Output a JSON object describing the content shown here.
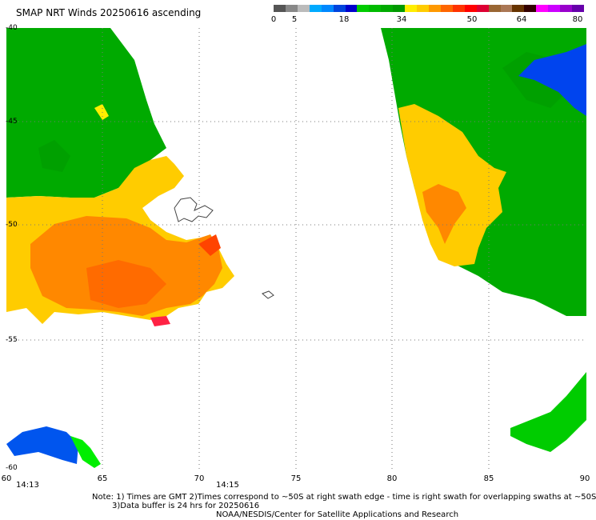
{
  "title": "SMAP NRT Winds 20250616 ascending",
  "colorbar": {
    "labels": [
      "0",
      "5",
      "18",
      "34",
      "50",
      "64",
      "80"
    ],
    "segments": [
      "#555555",
      "#888888",
      "#bbbbbb",
      "#00aaff",
      "#0088ff",
      "#0044dd",
      "#0000cc",
      "#00cc00",
      "#00bb00",
      "#00aa00",
      "#009900",
      "#ffee00",
      "#ffcc00",
      "#ff9900",
      "#ff6600",
      "#ff3300",
      "#ff0000",
      "#dd0033",
      "#996633",
      "#aa7755",
      "#663300",
      "#330000",
      "#ff00ff",
      "#cc00ff",
      "#9900cc",
      "#6600aa"
    ],
    "colors": {
      "green": "#00aa00",
      "yellow": "#ffcc00",
      "orange": "#ff7700",
      "red": "#ff2244",
      "blue": "#0055ee",
      "light_green": "#00ee00"
    }
  },
  "axes": {
    "lat_labels": [
      "-40",
      "-45",
      "-50",
      "-55",
      "-60"
    ],
    "lon_labels": [
      "60",
      "65",
      "70",
      "75",
      "80",
      "85",
      "90"
    ],
    "lat_range": [
      -60,
      -40
    ],
    "lon_range": [
      60,
      90
    ]
  },
  "times": [
    "14:13",
    "14:15"
  ],
  "notes": {
    "line1": "Note: 1) Times are GMT 2)Times correspond to ~50S at right swath edge - time is right swath for overlapping swaths at ~50S",
    "line2": "3)Data buffer is 24 hrs for 20250616",
    "line3": "NOAA/NESDIS/Center for Satellite Applications and Research"
  }
}
